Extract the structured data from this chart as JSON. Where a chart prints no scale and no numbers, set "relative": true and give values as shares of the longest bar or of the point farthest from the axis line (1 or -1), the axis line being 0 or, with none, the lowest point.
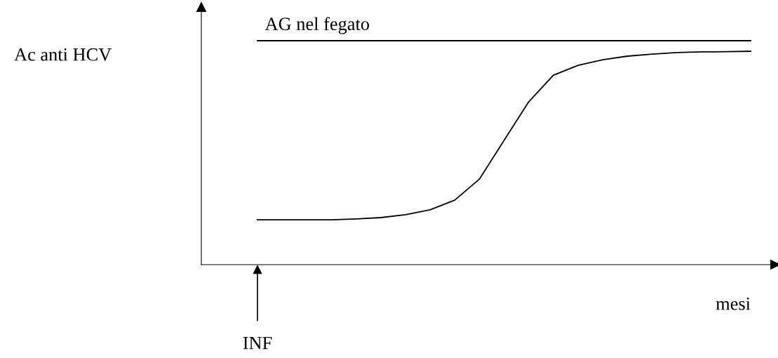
{
  "chart_data": {
    "type": "line",
    "relative": true,
    "xlabel": "mesi",
    "categories": [
      null,
      null,
      null,
      null,
      null,
      null,
      null,
      null,
      null,
      null,
      null,
      null,
      null,
      null,
      null,
      null,
      null,
      null,
      null,
      null,
      null
    ],
    "series": [
      {
        "name": "AG nel fegato",
        "color": "#000000",
        "values": [
          1,
          1,
          1,
          1,
          1,
          1,
          1,
          1,
          1,
          1,
          1,
          1,
          1,
          1,
          1,
          1,
          1,
          1,
          1,
          1,
          1
        ]
      },
      {
        "color": "#000000",
        "values": [
          0.2,
          0.2,
          0.2,
          0.2,
          0.204,
          0.21,
          0.223,
          0.245,
          0.288,
          0.382,
          0.555,
          0.727,
          0.846,
          0.89,
          0.915,
          0.931,
          0.94,
          0.947,
          0.95,
          0.951,
          0.953
        ]
      }
    ],
    "annotations": [
      "INF",
      "Ac anti HCV"
    ],
    "legend": false,
    "tick_labels": false
  }
}
